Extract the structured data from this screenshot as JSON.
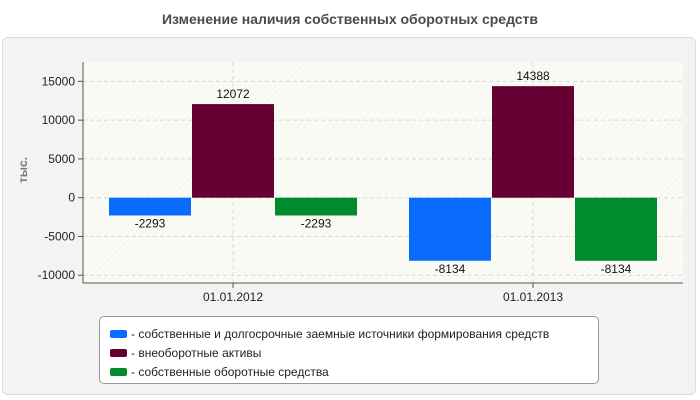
{
  "chart_data": {
    "type": "bar",
    "title": "Изменение наличия собственных оборотных средств",
    "ylabel": "тыс.",
    "xlabel": "",
    "categories": [
      "01.01.2012",
      "01.01.2013"
    ],
    "series": [
      {
        "name": "- собственные и долгосрочные заемные источники формирования средств",
        "values": [
          -2293,
          -8134
        ],
        "color": "#0a6cff"
      },
      {
        "name": "- внеоборотные активы",
        "values": [
          12072,
          14388
        ],
        "color": "#660033"
      },
      {
        "name": "- собственные оборотные средства",
        "values": [
          -2293,
          -8134
        ],
        "color": "#008c2e"
      }
    ],
    "ylim": [
      -11000,
      17500
    ],
    "yticks": [
      -10000,
      -5000,
      0,
      5000,
      10000,
      15000
    ],
    "grid": true,
    "legend_position": "bottom"
  }
}
